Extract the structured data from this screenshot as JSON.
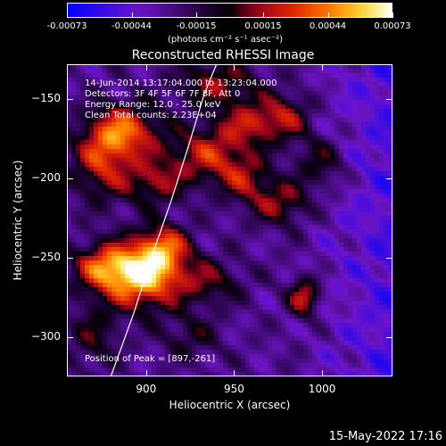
{
  "chart_data": {
    "type": "heatmap",
    "title": "Reconstructed RHESSI Image",
    "xlabel": "Heliocentric X (arcsec)",
    "ylabel": "Heliocentric Y (arcsec)",
    "xlim": [
      855,
      1040
    ],
    "ylim": [
      -325,
      -128
    ],
    "x_ticks": [
      900,
      950,
      1000
    ],
    "y_ticks": [
      -150,
      -200,
      -250,
      -300
    ],
    "colorbar": {
      "label": "(photons cm⁻² s⁻¹ asec⁻²)",
      "tick_labels": [
        "-0.00073",
        "-0.00044",
        "-0.00015",
        "0.00015",
        "0.00044",
        "0.00073"
      ],
      "range": [
        -0.00073,
        0.00073
      ]
    },
    "annotations": {
      "time": "14-Jun-2014 13:17:04.000 to 13:23:04.000",
      "detectors": "Detectors: 3F 4F 5F 6F 7F 8F, Att 0",
      "energy": "Energy Range: 12.0 - 25.0 keV",
      "clean": "Clean    Total counts: 2.23E+04",
      "peak": "Position of Peak = [897,-261]"
    },
    "peak": [
      897,
      -261
    ],
    "limb_line": [
      [
        880,
        -325
      ],
      [
        893,
        -285
      ],
      [
        903,
        -250
      ],
      [
        914,
        -215
      ],
      [
        924,
        -180
      ],
      [
        933,
        -147
      ],
      [
        940,
        -128
      ]
    ]
  },
  "footer": {
    "date": "15-May-2022 17:16"
  },
  "colors": {
    "background": "#000000",
    "text": "#ffffff"
  }
}
